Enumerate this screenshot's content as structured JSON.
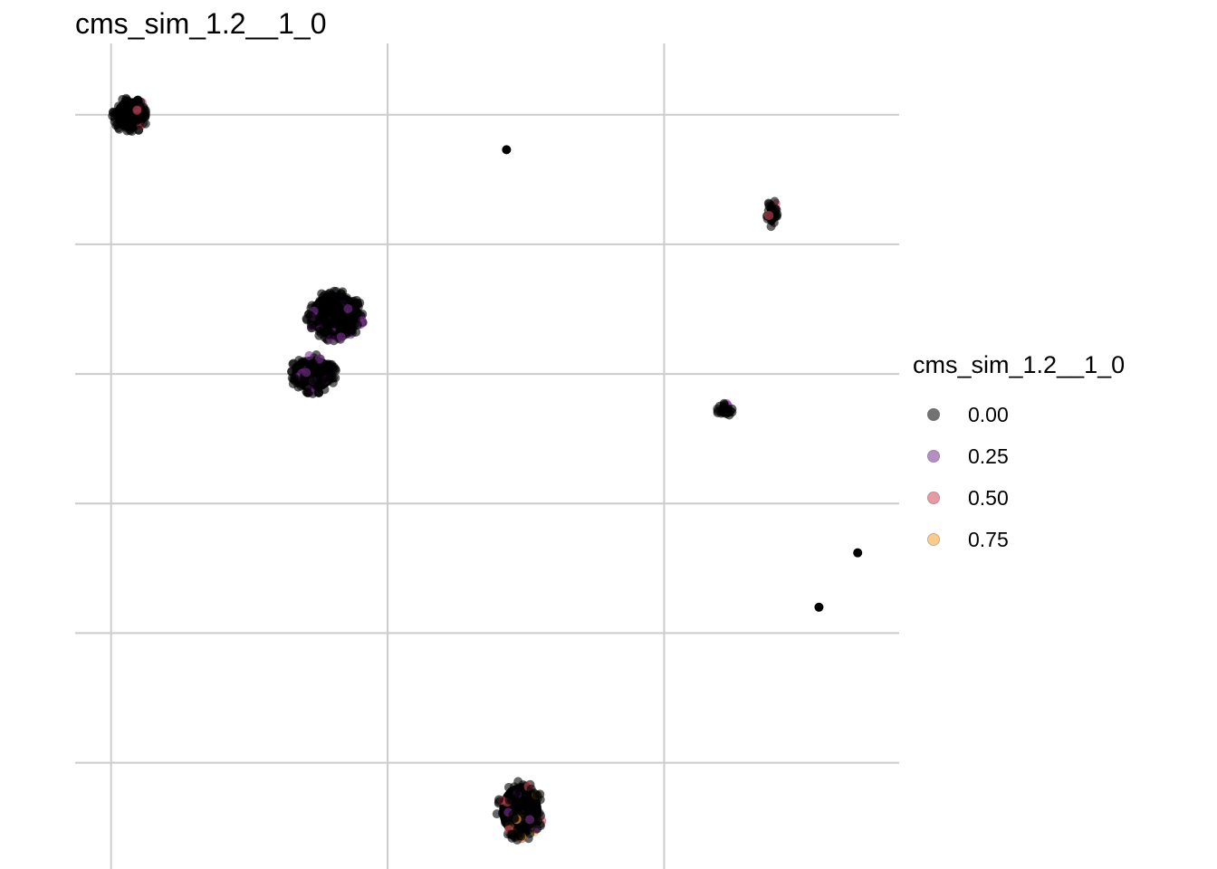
{
  "chart_data": {
    "type": "scatter",
    "title": "cms_sim_1.2__1_0",
    "xlabel": "",
    "ylabel": "",
    "xlim": [
      -0.13,
      2.85
    ],
    "ylim": [
      -0.82,
      5.55
    ],
    "grid": true,
    "legend": {
      "title": "cms_sim_1.2__1_0",
      "placement": "right",
      "entries": [
        {
          "label": "0.00",
          "color": "#000000"
        },
        {
          "label": "0.25",
          "color": "#7b3294"
        },
        {
          "label": "0.50",
          "color": "#d1495b"
        },
        {
          "label": "0.75",
          "color": "#f6a234"
        }
      ]
    },
    "clusters": [
      {
        "cx": 0.07,
        "cy": 5.0,
        "rx": 0.07,
        "ry": 0.15,
        "n": 90,
        "colors": [
          "#000000",
          "#d1495b",
          "#7b3294"
        ]
      },
      {
        "cx": 0.81,
        "cy": 3.45,
        "rx": 0.11,
        "ry": 0.21,
        "n": 170,
        "colors": [
          "#000000",
          "#7b3294"
        ]
      },
      {
        "cx": 0.73,
        "cy": 3.0,
        "rx": 0.09,
        "ry": 0.16,
        "n": 120,
        "colors": [
          "#000000",
          "#7b3294"
        ]
      },
      {
        "cx": 1.48,
        "cy": -0.37,
        "rx": 0.09,
        "ry": 0.24,
        "n": 120,
        "colors": [
          "#000000",
          "#7b3294",
          "#d1495b",
          "#f6a234"
        ]
      },
      {
        "cx": 2.39,
        "cy": 4.24,
        "rx": 0.022,
        "ry": 0.11,
        "n": 25,
        "colors": [
          "#000000",
          "#d1495b"
        ]
      },
      {
        "cx": 2.22,
        "cy": 2.72,
        "rx": 0.03,
        "ry": 0.06,
        "n": 22,
        "colors": [
          "#000000",
          "#7b3294"
        ]
      }
    ],
    "points": [
      {
        "x": 1.43,
        "y": 4.73,
        "color": "#000000"
      },
      {
        "x": 2.7,
        "y": 1.62,
        "color": "#000000"
      },
      {
        "x": 2.56,
        "y": 1.2,
        "color": "#000000"
      }
    ]
  }
}
